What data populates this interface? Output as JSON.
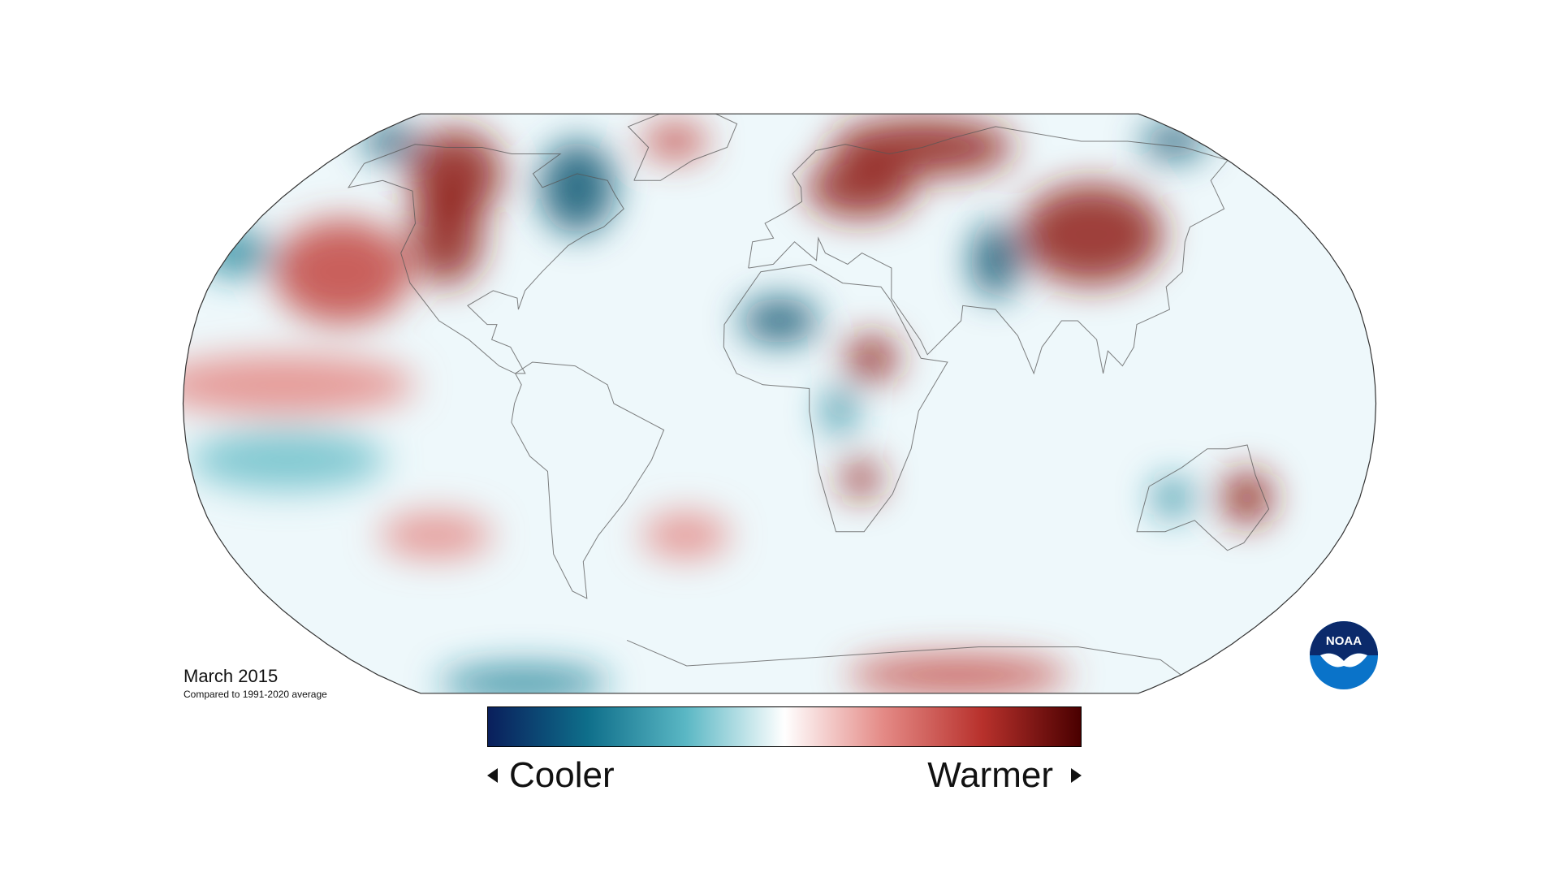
{
  "map": {
    "projection": "robinson",
    "ocean_background": "#ffffff",
    "outline_color": "#333333",
    "anomaly_regions": [
      {
        "name": "Alaska-Yukon warm",
        "kind": "warm",
        "intensity": 0.9,
        "lon": -125,
        "lat": 62,
        "rx": 18,
        "ry": 14
      },
      {
        "name": "western North America warm",
        "kind": "warm",
        "intensity": 0.8,
        "lon": -112,
        "lat": 45,
        "rx": 12,
        "ry": 14
      },
      {
        "name": "Bering cold",
        "kind": "cold",
        "intensity": 0.9,
        "lon": -168,
        "lat": 72,
        "rx": 12,
        "ry": 6
      },
      {
        "name": "eastern North America cold",
        "kind": "cold",
        "intensity": 1.0,
        "lon": -75,
        "lat": 58,
        "rx": 14,
        "ry": 14
      },
      {
        "name": "Greenland warm",
        "kind": "warm",
        "intensity": 0.7,
        "lon": -45,
        "lat": 72,
        "rx": 14,
        "ry": 6
      },
      {
        "name": "Siberia warm",
        "kind": "warm",
        "intensity": 1.0,
        "lon": 60,
        "lat": 70,
        "rx": 38,
        "ry": 10
      },
      {
        "name": "Europe warm",
        "kind": "warm",
        "intensity": 0.9,
        "lon": 30,
        "lat": 58,
        "rx": 20,
        "ry": 9
      },
      {
        "name": "East Asia warm",
        "kind": "warm",
        "intensity": 0.8,
        "lon": 105,
        "lat": 45,
        "rx": 24,
        "ry": 14
      },
      {
        "name": "Central Asia cold",
        "kind": "cold",
        "intensity": 0.8,
        "lon": 70,
        "lat": 38,
        "rx": 8,
        "ry": 10
      },
      {
        "name": "Sahara cold",
        "kind": "cold",
        "intensity": 0.8,
        "lon": 0,
        "lat": 22,
        "rx": 12,
        "ry": 6
      },
      {
        "name": "East Africa warm",
        "kind": "warm",
        "intensity": 0.8,
        "lon": 28,
        "lat": 12,
        "rx": 8,
        "ry": 6
      },
      {
        "name": "Congo cold",
        "kind": "cold",
        "intensity": 0.6,
        "lon": 18,
        "lat": -2,
        "rx": 5,
        "ry": 6
      },
      {
        "name": "southern Africa warm",
        "kind": "warm",
        "intensity": 0.8,
        "lon": 25,
        "lat": -20,
        "rx": 6,
        "ry": 5
      },
      {
        "name": "eastern Australia warm",
        "kind": "warm",
        "intensity": 0.8,
        "lon": 145,
        "lat": -25,
        "rx": 8,
        "ry": 7
      },
      {
        "name": "western Australia cold",
        "kind": "cold",
        "intensity": 0.6,
        "lon": 122,
        "lat": -25,
        "rx": 6,
        "ry": 5
      },
      {
        "name": "NE Pacific warm",
        "kind": "warm",
        "intensity": 0.5,
        "lon": -140,
        "lat": 35,
        "rx": 22,
        "ry": 14
      },
      {
        "name": "subtropical Pacific warm",
        "kind": "warm",
        "intensity": 0.35,
        "lon": -150,
        "lat": 5,
        "rx": 40,
        "ry": 8
      },
      {
        "name": "South Atlantic warm",
        "kind": "warm",
        "intensity": 0.35,
        "lon": -30,
        "lat": -35,
        "rx": 14,
        "ry": 6
      },
      {
        "name": "South Pacific warm",
        "kind": "warm",
        "intensity": 0.35,
        "lon": -110,
        "lat": -35,
        "rx": 18,
        "ry": 6
      },
      {
        "name": "central Pacific cold",
        "kind": "cold",
        "intensity": 0.35,
        "lon": -150,
        "lat": -15,
        "rx": 30,
        "ry": 8
      },
      {
        "name": "North Pacific cold",
        "kind": "cold",
        "intensity": 0.5,
        "lon": -178,
        "lat": 40,
        "rx": 12,
        "ry": 6
      },
      {
        "name": "Antarctic Peninsula cold",
        "kind": "cold",
        "intensity": 0.7,
        "lon": -120,
        "lat": -78,
        "rx": 40,
        "ry": 6
      },
      {
        "name": "East Antarctica warm",
        "kind": "warm",
        "intensity": 0.6,
        "lon": 80,
        "lat": -75,
        "rx": 50,
        "ry": 6
      },
      {
        "name": "Bering Strait cold",
        "kind": "cold",
        "intensity": 0.8,
        "lon": 170,
        "lat": 72,
        "rx": 14,
        "ry": 6
      }
    ]
  },
  "caption": {
    "title": "March 2015",
    "subtitle": "Compared to 1991-2020 average"
  },
  "legend": {
    "low_label": "Cooler",
    "high_label": "Warmer",
    "colors": [
      "#0a1f5c",
      "#0e6e8a",
      "#5ab7c4",
      "#ffffff",
      "#e48a86",
      "#b8312c",
      "#4a0000"
    ]
  },
  "logo": {
    "text": "NOAA",
    "color": "#0a73c9"
  }
}
